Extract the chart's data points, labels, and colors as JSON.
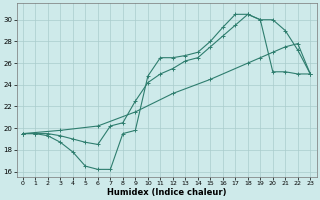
{
  "xlabel": "Humidex (Indice chaleur)",
  "background_color": "#ceeaea",
  "grid_color": "#aacccc",
  "line_color": "#2e7d6e",
  "xlim": [
    -0.5,
    23.5
  ],
  "ylim": [
    15.5,
    31.5
  ],
  "xticks": [
    0,
    1,
    2,
    3,
    4,
    5,
    6,
    7,
    8,
    9,
    10,
    11,
    12,
    13,
    14,
    15,
    16,
    17,
    18,
    19,
    20,
    21,
    22,
    23
  ],
  "yticks": [
    16,
    18,
    20,
    22,
    24,
    26,
    28,
    30
  ],
  "line1_x": [
    0,
    1,
    2,
    3,
    4,
    5,
    6,
    7,
    8,
    9,
    10,
    11,
    12,
    13,
    14,
    15,
    16,
    17,
    18,
    19,
    20,
    21,
    22,
    23
  ],
  "line1_y": [
    19.5,
    19.5,
    19.3,
    18.7,
    17.8,
    16.5,
    16.2,
    16.2,
    19.5,
    19.8,
    24.8,
    26.5,
    26.5,
    26.7,
    27.0,
    28.0,
    29.3,
    30.5,
    30.5,
    30.0,
    25.2,
    25.2,
    25.0,
    25.0
  ],
  "line2_x": [
    0,
    1,
    2,
    3,
    4,
    5,
    6,
    7,
    8,
    9,
    10,
    11,
    12,
    13,
    14,
    15,
    16,
    17,
    18,
    19,
    20,
    21,
    22,
    23
  ],
  "line2_y": [
    19.5,
    19.5,
    19.5,
    19.3,
    19.0,
    18.7,
    18.5,
    20.2,
    20.5,
    22.5,
    24.2,
    25.0,
    25.5,
    26.2,
    26.5,
    27.5,
    28.5,
    29.5,
    30.5,
    30.0,
    30.0,
    29.0,
    27.2,
    25.0
  ],
  "line3_x": [
    0,
    3,
    6,
    9,
    12,
    15,
    18,
    19,
    20,
    21,
    22,
    23
  ],
  "line3_y": [
    19.5,
    19.8,
    20.2,
    21.5,
    23.2,
    24.5,
    26.0,
    26.5,
    27.0,
    27.5,
    27.8,
    25.0
  ]
}
